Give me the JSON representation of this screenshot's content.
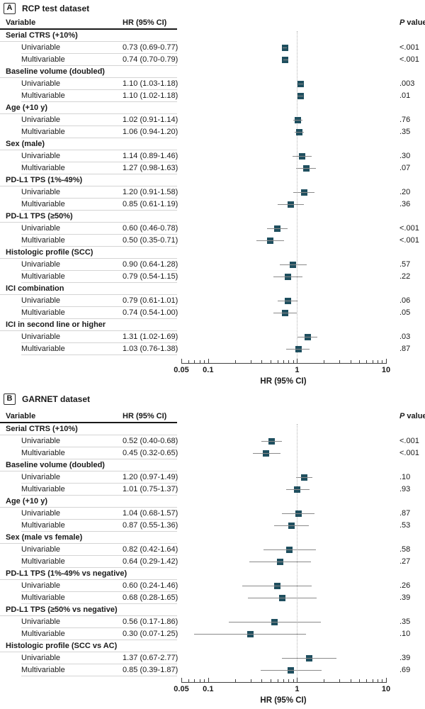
{
  "figure": {
    "colors": {
      "marker": "#1f4f5f",
      "ci_line": "#8a8a8a",
      "reference_line": "#b3b3b3",
      "axis": "#404040",
      "text": "#1a1a1a",
      "rule_dark": "#1a1a1a",
      "rule_light": "#d4d4d4"
    }
  },
  "chart_data": [
    {
      "type": "scatter",
      "subtype": "forest-plot",
      "panel_label": "A",
      "title": "RCP test dataset",
      "columns": {
        "variable": "Variable",
        "hr": "HR (95% CI)",
        "p_italic": "P",
        "p_rest": " value"
      },
      "xlabel": "HR (95% CI)",
      "x_scale": "log",
      "x_range": [
        0.05,
        10
      ],
      "x_ticks": [
        "0.05",
        "0.1",
        "1",
        "10"
      ],
      "reference_line": 1,
      "grid": false,
      "rows": [
        {
          "group": "Serial CTRS (+10%)"
        },
        {
          "label": "Univariable",
          "hr_text": "0.73 (0.69-0.77)",
          "hr": 0.73,
          "ci_low": 0.69,
          "ci_high": 0.77,
          "p": "<.001"
        },
        {
          "label": "Multivariable",
          "hr_text": "0.74 (0.70-0.79)",
          "hr": 0.74,
          "ci_low": 0.7,
          "ci_high": 0.79,
          "p": "<.001"
        },
        {
          "group": "Baseline volume (doubled)"
        },
        {
          "label": "Univariable",
          "hr_text": "1.10 (1.03-1.18)",
          "hr": 1.1,
          "ci_low": 1.03,
          "ci_high": 1.18,
          "p": ".003"
        },
        {
          "label": "Multivariable",
          "hr_text": "1.10 (1.02-1.18)",
          "hr": 1.1,
          "ci_low": 1.02,
          "ci_high": 1.18,
          "p": ".01"
        },
        {
          "group": "Age (+10 y)"
        },
        {
          "label": "Univariable",
          "hr_text": "1.02 (0.91-1.14)",
          "hr": 1.02,
          "ci_low": 0.91,
          "ci_high": 1.14,
          "p": ".76"
        },
        {
          "label": "Multivariable",
          "hr_text": "1.06 (0.94-1.20)",
          "hr": 1.06,
          "ci_low": 0.94,
          "ci_high": 1.2,
          "p": ".35"
        },
        {
          "group": "Sex (male)"
        },
        {
          "label": "Univariable",
          "hr_text": "1.14 (0.89-1.46)",
          "hr": 1.14,
          "ci_low": 0.89,
          "ci_high": 1.46,
          "p": ".30"
        },
        {
          "label": "Multivariable",
          "hr_text": "1.27 (0.98-1.63)",
          "hr": 1.27,
          "ci_low": 0.98,
          "ci_high": 1.63,
          "p": ".07"
        },
        {
          "group": "PD-L1 TPS (1%-49%)"
        },
        {
          "label": "Univariable",
          "hr_text": "1.20 (0.91-1.58)",
          "hr": 1.2,
          "ci_low": 0.91,
          "ci_high": 1.58,
          "p": ".20"
        },
        {
          "label": "Multivariable",
          "hr_text": "0.85 (0.61-1.19)",
          "hr": 0.85,
          "ci_low": 0.61,
          "ci_high": 1.19,
          "p": ".36"
        },
        {
          "group": "PD-L1 TPS (≥50%)"
        },
        {
          "label": "Univariable",
          "hr_text": "0.60 (0.46-0.78)",
          "hr": 0.6,
          "ci_low": 0.46,
          "ci_high": 0.78,
          "p": "<.001"
        },
        {
          "label": "Multivariable",
          "hr_text": "0.50 (0.35-0.71)",
          "hr": 0.5,
          "ci_low": 0.35,
          "ci_high": 0.71,
          "p": "<.001"
        },
        {
          "group": "Histologic profile (SCC)"
        },
        {
          "label": "Univariable",
          "hr_text": "0.90 (0.64-1.28)",
          "hr": 0.9,
          "ci_low": 0.64,
          "ci_high": 1.28,
          "p": ".57"
        },
        {
          "label": "Multivariable",
          "hr_text": "0.79 (0.54-1.15)",
          "hr": 0.79,
          "ci_low": 0.54,
          "ci_high": 1.15,
          "p": ".22"
        },
        {
          "group": "ICI combination"
        },
        {
          "label": "Univariable",
          "hr_text": "0.79 (0.61-1.01)",
          "hr": 0.79,
          "ci_low": 0.61,
          "ci_high": 1.01,
          "p": ".06"
        },
        {
          "label": "Multivariable",
          "hr_text": "0.74 (0.54-1.00)",
          "hr": 0.74,
          "ci_low": 0.54,
          "ci_high": 1.0,
          "p": ".05"
        },
        {
          "group": "ICI in second line or higher"
        },
        {
          "label": "Univariable",
          "hr_text": "1.31 (1.02-1.69)",
          "hr": 1.31,
          "ci_low": 1.02,
          "ci_high": 1.69,
          "p": ".03"
        },
        {
          "label": "Multivariable",
          "hr_text": "1.03 (0.76-1.38)",
          "hr": 1.03,
          "ci_low": 0.76,
          "ci_high": 1.38,
          "p": ".87"
        }
      ]
    },
    {
      "type": "scatter",
      "subtype": "forest-plot",
      "panel_label": "B",
      "title": "GARNET dataset",
      "columns": {
        "variable": "Variable",
        "hr": "HR (95% CI)",
        "p_italic": "P",
        "p_rest": " value"
      },
      "xlabel": "HR (95% CI)",
      "x_scale": "log",
      "x_range": [
        0.05,
        10
      ],
      "x_ticks": [
        "0.05",
        "0.1",
        "1",
        "10"
      ],
      "reference_line": 1,
      "grid": false,
      "rows": [
        {
          "group": "Serial CTRS (+10%)"
        },
        {
          "label": "Univariable",
          "hr_text": "0.52 (0.40-0.68)",
          "hr": 0.52,
          "ci_low": 0.4,
          "ci_high": 0.68,
          "p": "<.001"
        },
        {
          "label": "Multivariable",
          "hr_text": "0.45 (0.32-0.65)",
          "hr": 0.45,
          "ci_low": 0.32,
          "ci_high": 0.65,
          "p": "<.001"
        },
        {
          "group": "Baseline volume (doubled)"
        },
        {
          "label": "Univariable",
          "hr_text": "1.20 (0.97-1.49)",
          "hr": 1.2,
          "ci_low": 0.97,
          "ci_high": 1.49,
          "p": ".10"
        },
        {
          "label": "Multivariable",
          "hr_text": "1.01 (0.75-1.37)",
          "hr": 1.01,
          "ci_low": 0.75,
          "ci_high": 1.37,
          "p": ".93"
        },
        {
          "group": "Age (+10 y)"
        },
        {
          "label": "Univariable",
          "hr_text": "1.04 (0.68-1.57)",
          "hr": 1.04,
          "ci_low": 0.68,
          "ci_high": 1.57,
          "p": ".87"
        },
        {
          "label": "Multivariable",
          "hr_text": "0.87 (0.55-1.36)",
          "hr": 0.87,
          "ci_low": 0.55,
          "ci_high": 1.36,
          "p": ".53"
        },
        {
          "group": "Sex (male vs female)"
        },
        {
          "label": "Univariable",
          "hr_text": "0.82 (0.42-1.64)",
          "hr": 0.82,
          "ci_low": 0.42,
          "ci_high": 1.64,
          "p": ".58"
        },
        {
          "label": "Multivariable",
          "hr_text": "0.64 (0.29-1.42)",
          "hr": 0.64,
          "ci_low": 0.29,
          "ci_high": 1.42,
          "p": ".27"
        },
        {
          "group": "PD-L1 TPS (1%-49% vs negative)"
        },
        {
          "label": "Univariable",
          "hr_text": "0.60 (0.24-1.46)",
          "hr": 0.6,
          "ci_low": 0.24,
          "ci_high": 1.46,
          "p": ".26"
        },
        {
          "label": "Multivariable",
          "hr_text": "0.68 (0.28-1.65)",
          "hr": 0.68,
          "ci_low": 0.28,
          "ci_high": 1.65,
          "p": ".39"
        },
        {
          "group": "PD-L1 TPS (≥50% vs negative)"
        },
        {
          "label": "Univariable",
          "hr_text": "0.56 (0.17-1.86)",
          "hr": 0.56,
          "ci_low": 0.17,
          "ci_high": 1.86,
          "p": ".35"
        },
        {
          "label": "Multivariable",
          "hr_text": "0.30 (0.07-1.25)",
          "hr": 0.3,
          "ci_low": 0.07,
          "ci_high": 1.25,
          "p": ".10"
        },
        {
          "group": "Histologic profile (SCC vs AC)"
        },
        {
          "label": "Univariable",
          "hr_text": "1.37 (0.67-2.77)",
          "hr": 1.37,
          "ci_low": 0.67,
          "ci_high": 2.77,
          "p": ".39"
        },
        {
          "label": "Multivariable",
          "hr_text": "0.85 (0.39-1.87)",
          "hr": 0.85,
          "ci_low": 0.39,
          "ci_high": 1.87,
          "p": ".69"
        }
      ]
    }
  ]
}
